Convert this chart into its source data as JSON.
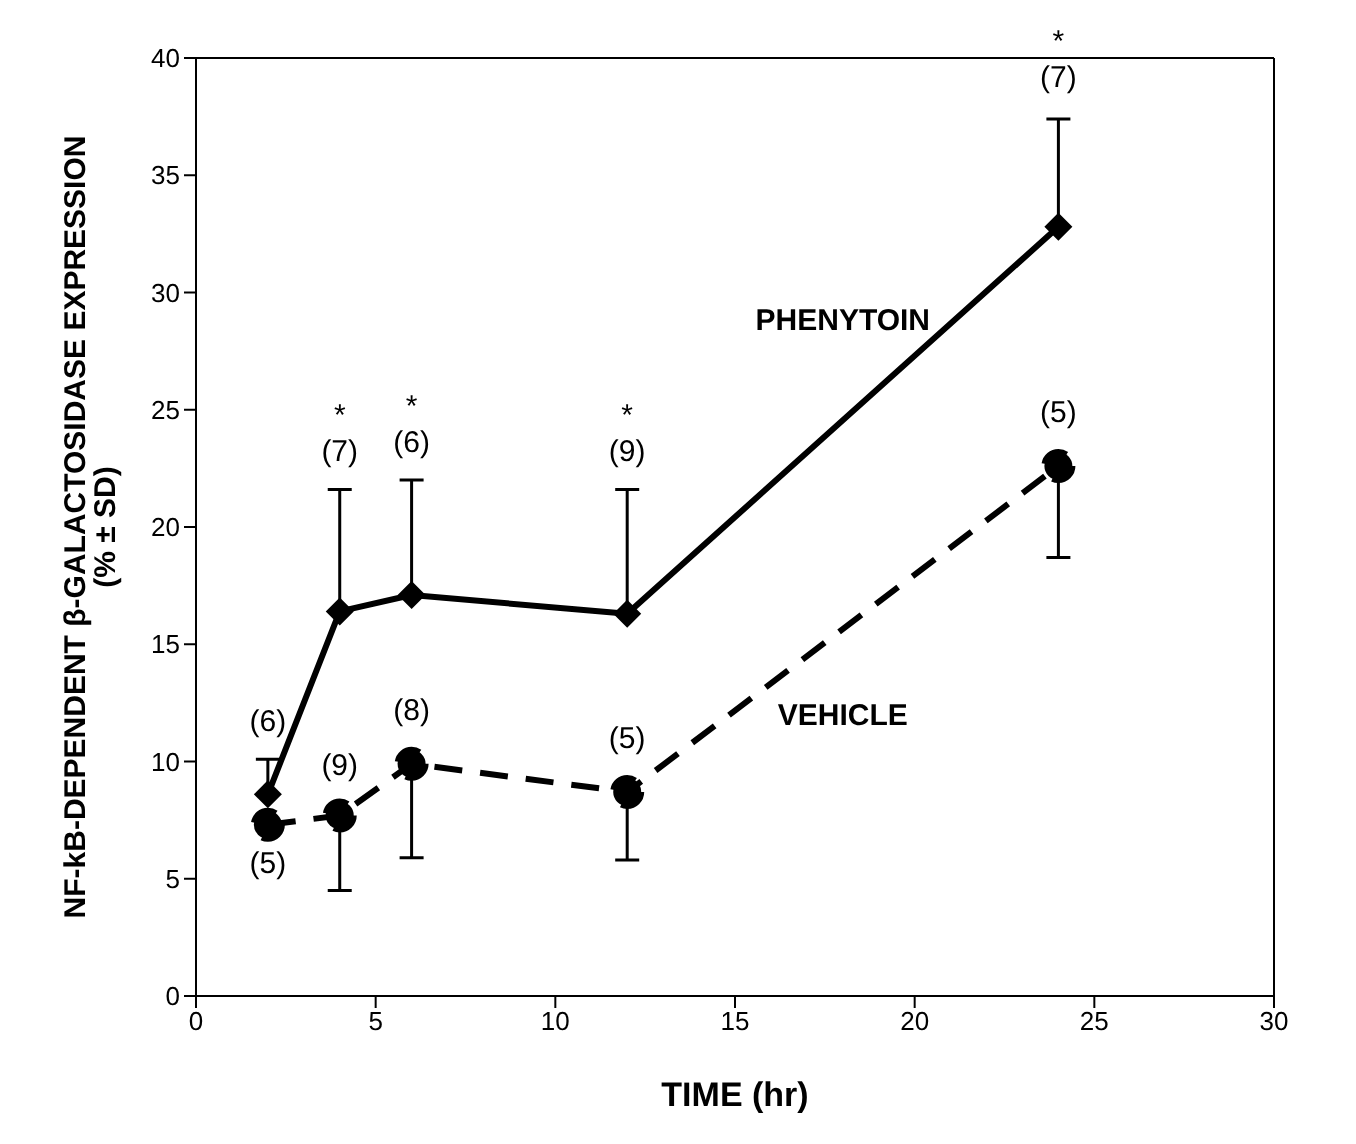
{
  "chart_data": {
    "type": "line",
    "xlabel": "TIME (hr)",
    "ylabel": "NF-kB-DEPENDENT β-GALACTOSIDASE EXPRESSION (% ± SD)",
    "x": [
      2,
      4,
      6,
      12,
      24
    ],
    "series": [
      {
        "name": "PHENYTOIN",
        "color": "#000000",
        "marker": "diamond",
        "line_style": "solid",
        "values": [
          8.6,
          16.4,
          17.1,
          16.3,
          32.8
        ],
        "errors": [
          [
            8.6,
            10.1
          ],
          [
            16.4,
            21.6
          ],
          [
            17.1,
            22.0
          ],
          [
            16.3,
            21.6
          ],
          [
            32.8,
            37.4
          ]
        ]
      },
      {
        "name": "VEHICLE",
        "color": "#000000",
        "marker": "circle",
        "line_style": "dashed",
        "values": [
          7.3,
          7.7,
          9.9,
          8.7,
          22.6
        ],
        "errors": [
          null,
          [
            4.5,
            7.7
          ],
          [
            5.9,
            9.9
          ],
          [
            5.8,
            8.7
          ],
          [
            18.7,
            22.6
          ]
        ]
      }
    ],
    "xlim": [
      0,
      30
    ],
    "xticks": [
      0,
      5,
      10,
      15,
      20,
      25,
      30
    ],
    "ylim": [
      0,
      40
    ],
    "yticks": [
      0,
      5,
      10,
      15,
      20,
      25,
      30,
      35,
      40
    ],
    "grid": false,
    "legend": false,
    "annotations": [
      {
        "text": "(6)",
        "x": 2,
        "y": 10.1
      },
      {
        "text": "(5)",
        "x": 2,
        "y": 7.3
      },
      {
        "text": "*",
        "x": 4,
        "y": 21.6
      },
      {
        "text": "(7)",
        "x": 4,
        "y": 21.6
      },
      {
        "text": "(9)",
        "x": 4,
        "y": 7.7
      },
      {
        "text": "*",
        "x": 6,
        "y": 22.0
      },
      {
        "text": "(6)",
        "x": 6,
        "y": 22.0
      },
      {
        "text": "(8)",
        "x": 6,
        "y": 9.9
      },
      {
        "text": "*",
        "x": 12,
        "y": 21.6
      },
      {
        "text": "(9)",
        "x": 12,
        "y": 21.6
      },
      {
        "text": "(5)",
        "x": 12,
        "y": 8.7
      },
      {
        "text": "*",
        "x": 24,
        "y": 37.4
      },
      {
        "text": "(7)",
        "x": 24,
        "y": 37.4
      },
      {
        "text": "(5)",
        "x": 24,
        "y": 22.6
      }
    ]
  }
}
